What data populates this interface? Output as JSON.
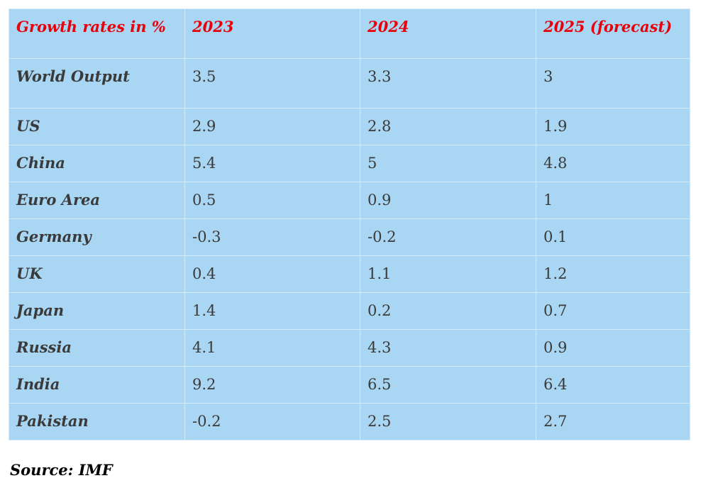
{
  "table": {
    "header": [
      "Growth rates in %",
      "2023",
      "2024",
      "2025 (forecast)"
    ],
    "rows": [
      [
        "World Output",
        "3.5",
        "3.3",
        "3"
      ],
      [
        "US",
        "2.9",
        "2.8",
        "1.9"
      ],
      [
        "China",
        "5.4",
        "5",
        "4.8"
      ],
      [
        "Euro Area",
        "0.5",
        "0.9",
        "1"
      ],
      [
        "Germany",
        "-0.3",
        "-0.2",
        "0.1"
      ],
      [
        "UK",
        "0.4",
        "1.1",
        "1.2"
      ],
      [
        "Japan",
        "1.4",
        "0.2",
        "0.7"
      ],
      [
        "Russia",
        "4.1",
        "4.3",
        "0.9"
      ],
      [
        "India",
        "9.2",
        "6.5",
        "6.4"
      ],
      [
        "Pakistan",
        "-0.2",
        "2.5",
        "2.7"
      ]
    ]
  },
  "source": "Source: IMF"
}
